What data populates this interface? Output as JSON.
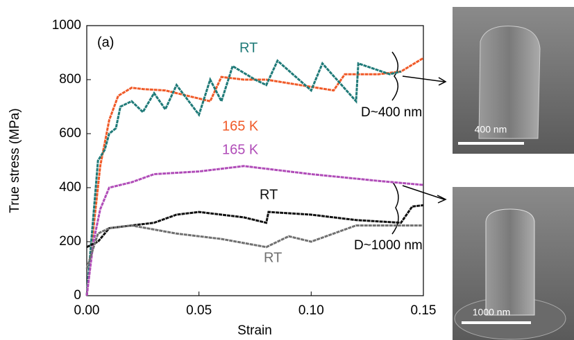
{
  "chart_data": {
    "type": "line",
    "panel_label": "(a)",
    "x_label": "Strain",
    "y_label": "True stress (MPa)",
    "xlim": [
      0,
      0.15
    ],
    "ylim": [
      0,
      1000
    ],
    "xticks": [
      {
        "value": 0,
        "label": "0.00"
      },
      {
        "value": 0.05,
        "label": "0.05"
      },
      {
        "value": 0.1,
        "label": "0.10"
      },
      {
        "value": 0.15,
        "label": "0.15"
      }
    ],
    "yticks": [
      0,
      200,
      400,
      600,
      800,
      1000
    ],
    "series": [
      {
        "name": "165 K",
        "color": "#f05a28",
        "x": [
          0,
          0.003,
          0.006,
          0.01,
          0.014,
          0.02,
          0.025,
          0.035,
          0.045,
          0.055,
          0.06,
          0.07,
          0.08,
          0.095,
          0.11,
          0.115,
          0.13,
          0.14,
          0.15
        ],
        "values": [
          0,
          250,
          480,
          650,
          740,
          770,
          765,
          760,
          740,
          720,
          810,
          800,
          800,
          780,
          760,
          820,
          820,
          830,
          880
        ]
      },
      {
        "name": "RT",
        "color": "#1f7a78",
        "x": [
          0,
          0.003,
          0.005,
          0.008,
          0.01,
          0.013,
          0.015,
          0.02,
          0.025,
          0.03,
          0.035,
          0.04,
          0.05,
          0.055,
          0.06,
          0.065,
          0.075,
          0.08,
          0.085,
          0.1,
          0.105,
          0.12,
          0.121,
          0.135,
          0.14
        ],
        "values": [
          0,
          300,
          500,
          540,
          600,
          620,
          700,
          720,
          680,
          750,
          690,
          780,
          670,
          800,
          720,
          850,
          800,
          780,
          870,
          760,
          860,
          720,
          860,
          820,
          830
        ]
      },
      {
        "name": "165 K",
        "color": "#b04cb8",
        "x": [
          0,
          0.003,
          0.006,
          0.01,
          0.02,
          0.03,
          0.05,
          0.07,
          0.1,
          0.13,
          0.15
        ],
        "values": [
          0,
          200,
          320,
          400,
          420,
          450,
          460,
          480,
          450,
          425,
          410
        ]
      },
      {
        "name": "RT",
        "color": "#111111",
        "x": [
          0,
          0.005,
          0.01,
          0.02,
          0.03,
          0.04,
          0.05,
          0.07,
          0.08,
          0.081,
          0.1,
          0.12,
          0.14,
          0.145,
          0.15
        ],
        "values": [
          180,
          200,
          250,
          260,
          270,
          300,
          310,
          290,
          270,
          310,
          300,
          280,
          270,
          330,
          335
        ]
      },
      {
        "name": "RT",
        "color": "#707070",
        "x": [
          0,
          0.005,
          0.01,
          0.02,
          0.04,
          0.06,
          0.08,
          0.09,
          0.1,
          0.12,
          0.15
        ],
        "values": [
          100,
          230,
          250,
          260,
          230,
          210,
          180,
          220,
          200,
          260,
          260
        ]
      }
    ],
    "annotations": [
      "D~400 nm",
      "D~1000 nm"
    ],
    "scale_bars": [
      "400 nm",
      "1000 nm"
    ]
  }
}
